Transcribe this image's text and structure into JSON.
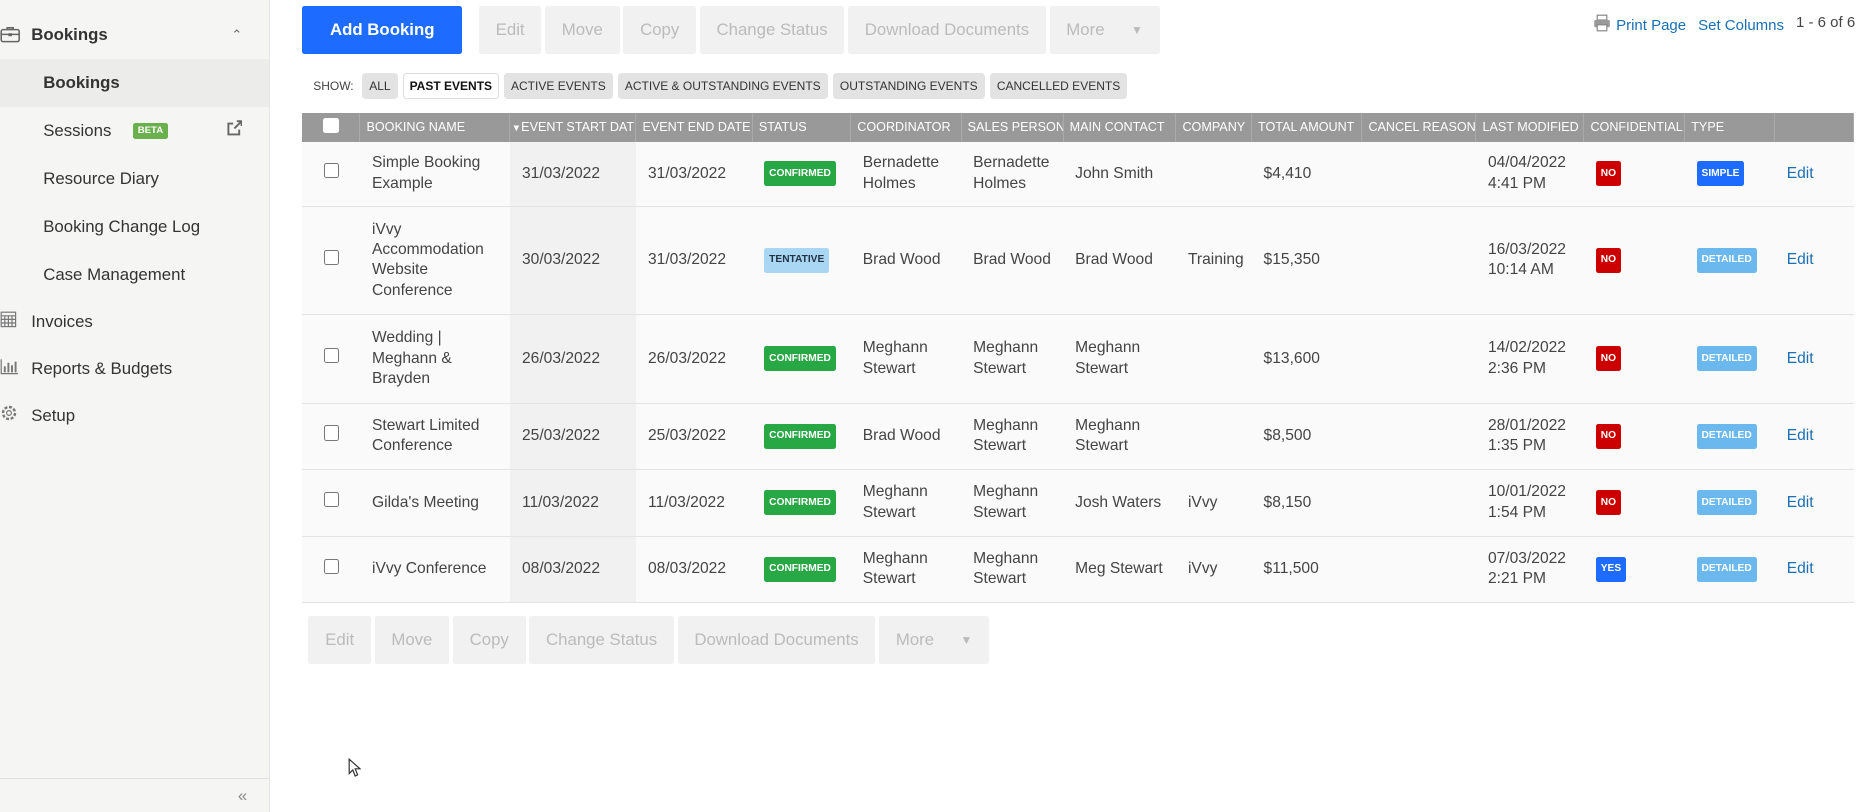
{
  "sidebar": {
    "bookings_group": "Bookings",
    "items": [
      {
        "label": "Bookings",
        "active": true
      },
      {
        "label": "Sessions",
        "badge": "BETA"
      },
      {
        "label": "Resource Diary"
      },
      {
        "label": "Booking Change Log"
      },
      {
        "label": "Case Management"
      }
    ],
    "top": [
      {
        "label": "Invoices",
        "icon": "calculator-icon"
      },
      {
        "label": "Reports & Budgets",
        "icon": "bar-chart-icon"
      },
      {
        "label": "Setup",
        "icon": "gear-icon"
      }
    ],
    "collapse": "«"
  },
  "toolbar": {
    "add": "Add Booking",
    "edit": "Edit",
    "move": "Move",
    "copy": "Copy",
    "change_status": "Change Status",
    "download": "Download Documents",
    "more": "More"
  },
  "topright": {
    "print": "Print Page",
    "set_columns": "Set Columns",
    "count": "1 - 6 of 6"
  },
  "filters": {
    "label": "SHOW:",
    "options": [
      "ALL",
      "PAST EVENTS",
      "ACTIVE EVENTS",
      "ACTIVE & OUTSTANDING EVENTS",
      "OUTSTANDING EVENTS",
      "CANCELLED EVENTS"
    ],
    "selected": "PAST EVENTS"
  },
  "table": {
    "headers": [
      "BOOKING NAME",
      "EVENT START DATE",
      "EVENT END DATE",
      "STATUS",
      "COORDINATOR",
      "SALES PERSON",
      "MAIN CONTACT",
      "COMPANY",
      "TOTAL AMOUNT",
      "CANCEL REASON",
      "LAST MODIFIED",
      "CONFIDENTIAL",
      "TYPE"
    ],
    "sort_column": "EVENT START DATE",
    "rows": [
      {
        "name": "Simple Booking Example",
        "start": "31/03/2022",
        "end": "31/03/2022",
        "status": "CONFIRMED",
        "coordinator": "Bernadette Holmes",
        "sales": "Bernadette Holmes",
        "contact": "John Smith",
        "company": "",
        "total": "$4,410",
        "cancel": "",
        "modified_date": "04/04/2022",
        "modified_time": "4:41 PM",
        "confidential": "NO",
        "type": "SIMPLE",
        "action": "Edit"
      },
      {
        "name": "iVvy Accommodation Website Conference",
        "start": "30/03/2022",
        "end": "31/03/2022",
        "status": "TENTATIVE",
        "coordinator": "Brad Wood",
        "sales": "Brad Wood",
        "contact": "Brad Wood",
        "company": "Training",
        "total": "$15,350",
        "cancel": "",
        "modified_date": "16/03/2022",
        "modified_time": "10:14 AM",
        "confidential": "NO",
        "type": "DETAILED",
        "action": "Edit"
      },
      {
        "name": "Wedding | Meghann & Brayden",
        "start": "26/03/2022",
        "end": "26/03/2022",
        "status": "CONFIRMED",
        "coordinator": "Meghann Stewart",
        "sales": "Meghann Stewart",
        "contact": "Meghann Stewart",
        "company": "",
        "total": "$13,600",
        "cancel": "",
        "modified_date": "14/02/2022",
        "modified_time": "2:36 PM",
        "confidential": "NO",
        "type": "DETAILED",
        "action": "Edit"
      },
      {
        "name": "Stewart Limited Conference",
        "start": "25/03/2022",
        "end": "25/03/2022",
        "status": "CONFIRMED",
        "coordinator": "Brad Wood",
        "sales": "Meghann Stewart",
        "contact": "Meghann Stewart",
        "company": "",
        "total": "$8,500",
        "cancel": "",
        "modified_date": "28/01/2022",
        "modified_time": "1:35 PM",
        "confidential": "NO",
        "type": "DETAILED",
        "action": "Edit"
      },
      {
        "name": "Gilda's Meeting",
        "start": "11/03/2022",
        "end": "11/03/2022",
        "status": "CONFIRMED",
        "coordinator": "Meghann Stewart",
        "sales": "Meghann Stewart",
        "contact": "Josh Waters",
        "company": "iVvy",
        "total": "$8,150",
        "cancel": "",
        "modified_date": "10/01/2022",
        "modified_time": "1:54 PM",
        "confidential": "NO",
        "type": "DETAILED",
        "action": "Edit"
      },
      {
        "name": "iVvy Conference",
        "start": "08/03/2022",
        "end": "08/03/2022",
        "status": "CONFIRMED",
        "coordinator": "Meghann Stewart",
        "sales": "Meghann Stewart",
        "contact": "Meg Stewart",
        "company": "iVvy",
        "total": "$11,500",
        "cancel": "",
        "modified_date": "07/03/2022",
        "modified_time": "2:21 PM",
        "confidential": "YES",
        "type": "DETAILED",
        "action": "Edit"
      }
    ]
  },
  "colors": {
    "primary": "#1e6cff",
    "confirmed": "#28a745",
    "tentative": "#a8d6f3",
    "no": "#cc0000",
    "detailed": "#6bb8ee",
    "header": "#999999"
  }
}
